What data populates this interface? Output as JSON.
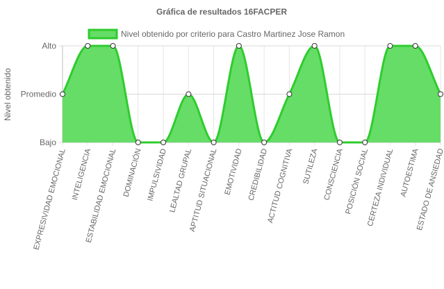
{
  "chart_data": {
    "type": "area",
    "title": "Gráfica de resultados 16FACPER",
    "ylabel": "Nivel obtenido",
    "xlabel": "",
    "y_levels": [
      "Bajo",
      "Promedio",
      "Alto"
    ],
    "ylim": [
      0,
      2
    ],
    "grid": true,
    "legend_position": "top",
    "categories": [
      "EXPRESIVIDAD EMOCIONAL",
      "INTELIGENCIA",
      "ESTABILIDAD EMOCIONAL",
      "DOMINACIÓN",
      "IMPULSIVIDAD",
      "LEALTAD GRUPAL",
      "APTITUD SITUACIONAL",
      "EMOTIVIDAD",
      "CREDIBILIDAD",
      "ACTITUD COGNITIVA",
      "SUTILEZA",
      "CONSCIENCIA",
      "POSICIÓN SOCIAL",
      "CERTEZA INDIVIDUAL",
      "AUTOESTIMA",
      "ESTADO DE ANSIEDAD"
    ],
    "series": [
      {
        "name": "Nivel obtenido por criterio para Castro Martinez Jose Ramon",
        "values": [
          1,
          2,
          2,
          0,
          0,
          1,
          0,
          2,
          0,
          1,
          2,
          0,
          0,
          2,
          2,
          1
        ],
        "color": "#2ecc2e",
        "fill": "#66dd66"
      }
    ]
  }
}
